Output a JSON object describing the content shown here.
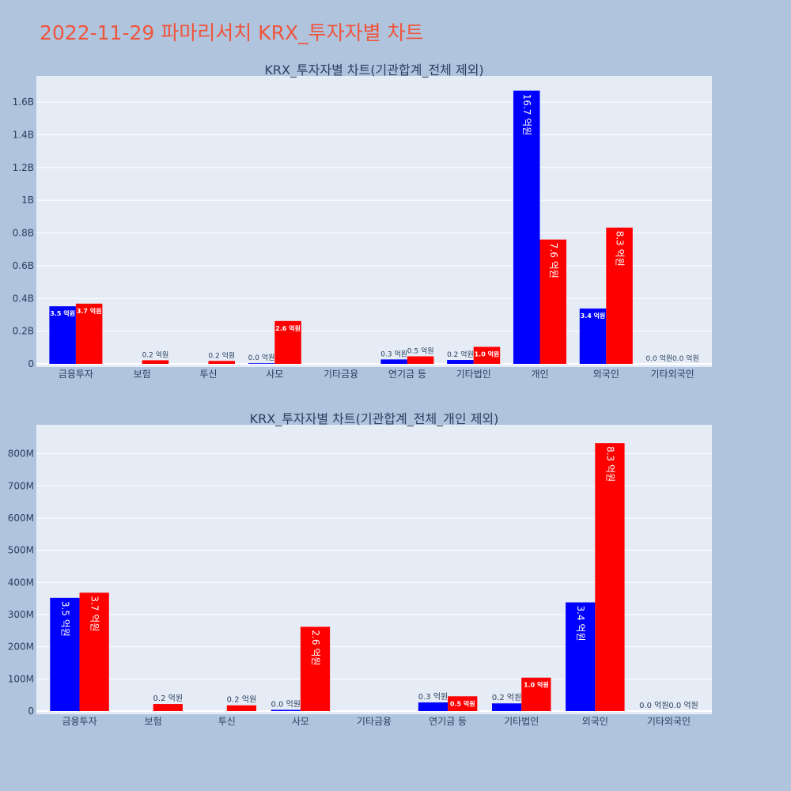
{
  "page_title": "2022-11-29 파마리서치 KRX_투자자별 차트",
  "colors": {
    "background": "#b0c4de",
    "plot_bg": "#e5ecf6",
    "grid": "#ffffff",
    "title": "#ef553b",
    "text": "#2a3f5f",
    "buy": "#0000ff",
    "sell": "#ff0000"
  },
  "chart_data": [
    {
      "type": "bar",
      "title": "KRX_투자자별 차트(기관합계_전체 제외)",
      "categories": [
        "금융투자",
        "보험",
        "투신",
        "사모",
        "기타금융",
        "연기금 등",
        "기타법인",
        "개인",
        "외국인",
        "기타외국인"
      ],
      "ylim": [
        0,
        1760000000
      ],
      "yticks": [
        0,
        200000000,
        400000000,
        600000000,
        800000000,
        1000000000,
        1200000000,
        1400000000,
        1600000000
      ],
      "ytick_labels": [
        "0",
        "0.2B",
        "0.4B",
        "0.6B",
        "0.8B",
        "1B",
        "1.2B",
        "1.4B",
        "1.6B"
      ],
      "grid": true,
      "series": [
        {
          "color": "#0000ff",
          "values": [
            352000000,
            0,
            0,
            4000000,
            0,
            27000000,
            24000000,
            1670000000,
            338000000,
            0
          ],
          "labels": [
            "3.5 억원",
            "",
            "",
            "0.0 억원",
            "",
            "0.3 억원",
            "0.2 억원",
            "16.7 억원",
            "3.4 억원",
            "0.0 억원"
          ]
        },
        {
          "color": "#ff0000",
          "values": [
            368000000,
            22000000,
            18000000,
            262000000,
            0,
            46000000,
            104000000,
            760000000,
            833000000,
            0
          ],
          "labels": [
            "3.7 억원",
            "0.2 억원",
            "0.2 억원",
            "2.6 억원",
            "",
            "0.5 억원",
            "1.0 억원",
            "7.6 억원",
            "8.3 억원",
            "0.0 억원"
          ]
        }
      ]
    },
    {
      "type": "bar",
      "title": "KRX_투자자별 차트(기관합계_전체_개인 제외)",
      "categories": [
        "금융투자",
        "보험",
        "투신",
        "사모",
        "기타금융",
        "연기금 등",
        "기타법인",
        "외국인",
        "기타외국인"
      ],
      "ylim": [
        0,
        890000000
      ],
      "yticks": [
        0,
        100000000,
        200000000,
        300000000,
        400000000,
        500000000,
        600000000,
        700000000,
        800000000
      ],
      "ytick_labels": [
        "0",
        "100M",
        "200M",
        "300M",
        "400M",
        "500M",
        "600M",
        "700M",
        "800M"
      ],
      "grid": true,
      "series": [
        {
          "color": "#0000ff",
          "values": [
            352000000,
            0,
            0,
            4000000,
            0,
            27000000,
            24000000,
            338000000,
            0
          ],
          "labels": [
            "3.5 억원",
            "",
            "",
            "0.0 억원",
            "",
            "0.3 억원",
            "0.2 억원",
            "3.4 억원",
            "0.0 억원"
          ]
        },
        {
          "color": "#ff0000",
          "values": [
            368000000,
            22000000,
            18000000,
            262000000,
            0,
            46000000,
            104000000,
            833000000,
            0
          ],
          "labels": [
            "3.7 억원",
            "0.2 억원",
            "0.2 억원",
            "2.6 억원",
            "",
            "0.5 억원",
            "1.0 억원",
            "8.3 억원",
            "0.0 억원"
          ]
        }
      ]
    }
  ]
}
